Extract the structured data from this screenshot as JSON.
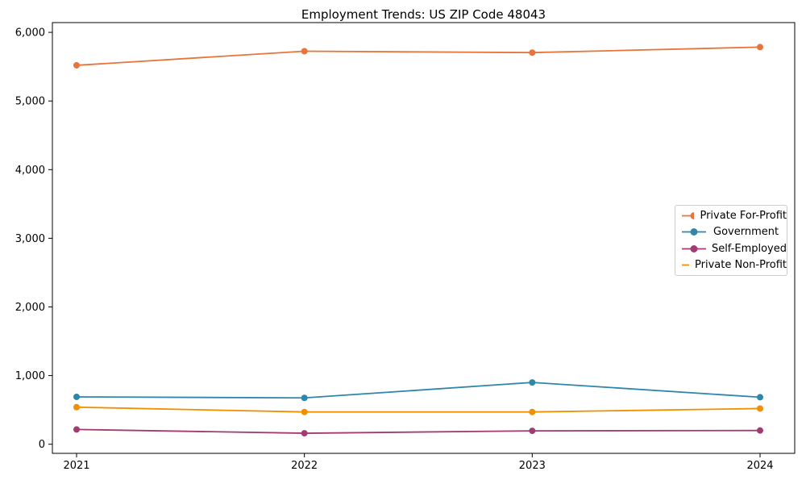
{
  "figure": {
    "background_color": "#ffffff",
    "frame_color": "#000000"
  },
  "chart_data": {
    "type": "line",
    "title": "Employment Trends: US ZIP Code 48043",
    "xlabel": "",
    "ylabel": "",
    "categories": [
      "2021",
      "2022",
      "2023",
      "2024"
    ],
    "series": [
      {
        "name": "Private For-Profit",
        "color": "#E8743B",
        "values": [
          5520,
          5725,
          5705,
          5785
        ]
      },
      {
        "name": "Government",
        "color": "#2E86AB",
        "values": [
          690,
          675,
          900,
          685
        ]
      },
      {
        "name": "Self-Employed",
        "color": "#A23B72",
        "values": [
          215,
          160,
          195,
          200
        ]
      },
      {
        "name": "Private Non-Profit",
        "color": "#F18F01",
        "values": [
          540,
          470,
          470,
          520
        ]
      }
    ],
    "yticks": [
      0,
      1000,
      2000,
      3000,
      4000,
      5000,
      6000
    ],
    "ytick_labels": [
      "0",
      "1,000",
      "2,000",
      "3,000",
      "4,000",
      "5,000",
      "6,000"
    ],
    "ylim": [
      -130,
      6120
    ],
    "grid": false,
    "legend_position": "center-right",
    "marker": "circle"
  }
}
